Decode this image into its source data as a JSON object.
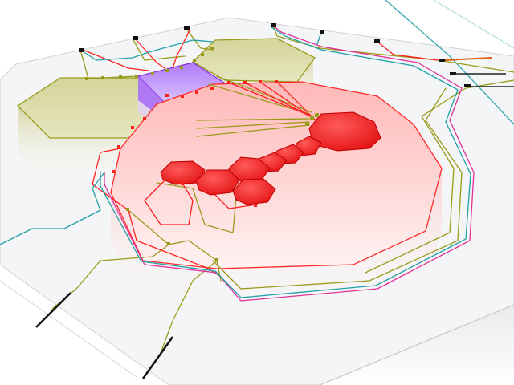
{
  "colors": {
    "background": "#ffffff",
    "board_fill": "#f5f6f7",
    "board_edge": "#c9cccf",
    "red": "#ff2020",
    "red_fill": "#ffcccc",
    "olive": "#9a9a1a",
    "olive_fill": "#d8d8a0",
    "purple": "#9b3df5",
    "magenta": "#e0309a",
    "teal": "#20a0a8",
    "black": "#111111",
    "orange": "#e06010"
  },
  "regions": [
    {
      "name": "large-red-region",
      "color": "red"
    },
    {
      "name": "olive-hexagon-left",
      "color": "olive"
    },
    {
      "name": "olive-hexagon-top",
      "color": "olive"
    },
    {
      "name": "purple-block",
      "color": "purple"
    }
  ],
  "cells": {
    "count": 8,
    "color": "red"
  },
  "terminals": {
    "count": 12,
    "color": "black"
  }
}
